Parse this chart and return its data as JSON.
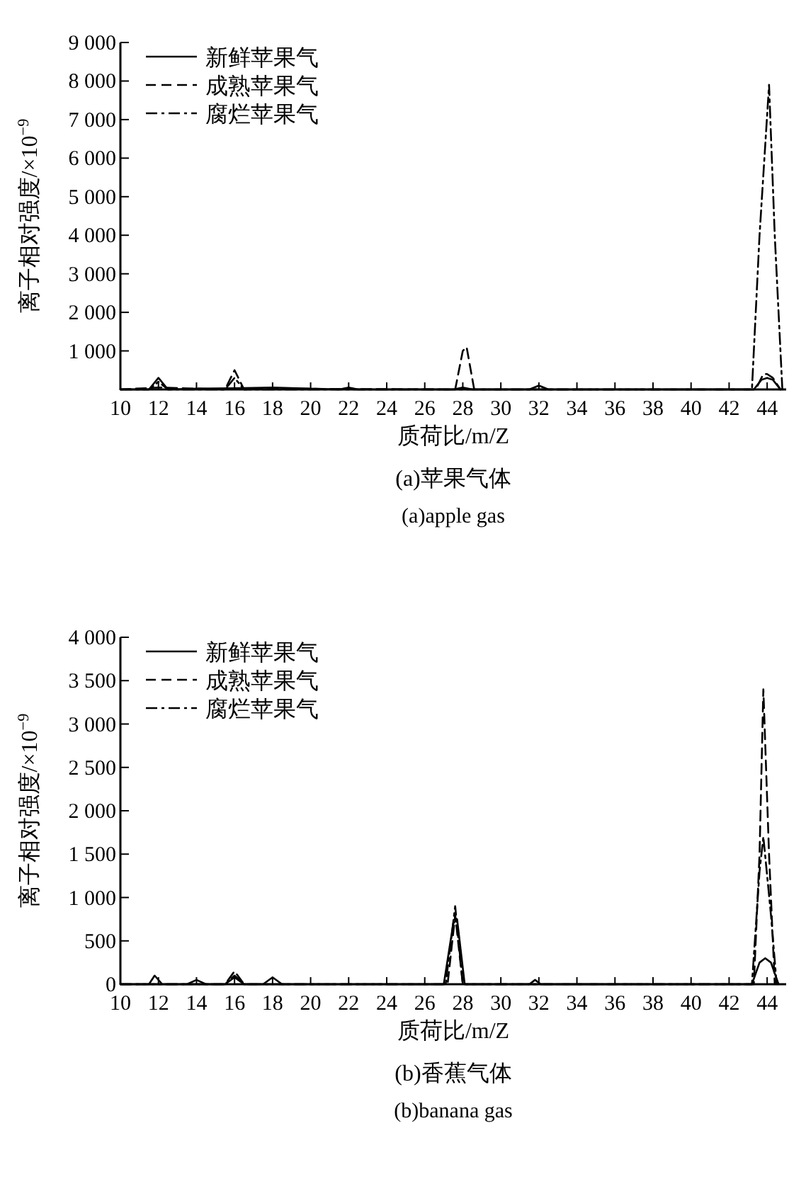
{
  "chart_data": [
    {
      "type": "line",
      "title": "(a)苹果气体",
      "subtitle": "(a)apple gas",
      "xlabel": "质荷比/m/Z",
      "ylabel": "离子相对强度/×10$^{−9}$",
      "xlim": [
        10,
        45
      ],
      "xticks": [
        10,
        12,
        14,
        16,
        18,
        20,
        22,
        24,
        26,
        28,
        30,
        32,
        34,
        36,
        38,
        40,
        42,
        44
      ],
      "ylim": [
        0,
        9000
      ],
      "yticks": [
        {
          "value": 1000,
          "label": "1 000"
        },
        {
          "value": 2000,
          "label": "2 000"
        },
        {
          "value": 3000,
          "label": "3 000"
        },
        {
          "value": 4000,
          "label": "4 000"
        },
        {
          "value": 5000,
          "label": "5 000"
        },
        {
          "value": 6000,
          "label": "6 000"
        },
        {
          "value": 7000,
          "label": "7 000"
        },
        {
          "value": 8000,
          "label": "8 000"
        },
        {
          "value": 9000,
          "label": "9 000"
        }
      ],
      "grid": false,
      "legend": "top left",
      "marker": "none",
      "series": [
        {
          "name": "新鲜苹果气",
          "color": "#000000",
          "line_style": "solid",
          "x": [
            10,
            11.5,
            12,
            12.5,
            14,
            16,
            18,
            21.5,
            22,
            22.5,
            27.5,
            28,
            28.5,
            31.5,
            32,
            32.5,
            43.3,
            43.7,
            44,
            44.3,
            44.7
          ],
          "values": [
            0,
            0,
            300,
            0,
            20,
            30,
            50,
            0,
            50,
            0,
            0,
            50,
            0,
            0,
            100,
            0,
            0,
            250,
            300,
            250,
            0
          ]
        },
        {
          "name": "成熟苹果气",
          "color": "#000000",
          "line_style": "dashed",
          "x": [
            10,
            12,
            15.5,
            16,
            16.5,
            18,
            27.6,
            28,
            28.2,
            28.6,
            43.4,
            43.8,
            44,
            44.3,
            44.7
          ],
          "values": [
            0,
            50,
            0,
            500,
            0,
            20,
            0,
            1000,
            1100,
            0,
            0,
            400,
            400,
            300,
            0
          ]
        },
        {
          "name": "腐烂苹果气",
          "color": "#000000",
          "line_style": "dashdot",
          "x": [
            10,
            11.5,
            12,
            12.5,
            15.5,
            16,
            16.5,
            43.2,
            43.6,
            44.1,
            44.4,
            44.8
          ],
          "values": [
            0,
            0,
            200,
            0,
            0,
            300,
            0,
            0,
            4000,
            7900,
            4000,
            0
          ]
        }
      ]
    },
    {
      "type": "line",
      "title": "(b)香蕉气体",
      "subtitle": "(b)banana gas",
      "xlabel": "质荷比/m/Z",
      "ylabel": "离子相对强度/×10$^{−9}$",
      "xlim": [
        10,
        45
      ],
      "xticks": [
        10,
        12,
        14,
        16,
        18,
        20,
        22,
        24,
        26,
        28,
        30,
        32,
        34,
        36,
        38,
        40,
        42,
        44
      ],
      "ylim": [
        0,
        4000
      ],
      "yticks": [
        0,
        500,
        {
          "value": 1000,
          "label": "1 000"
        },
        {
          "value": 1500,
          "label": "1 500"
        },
        {
          "value": 2000,
          "label": "2 000"
        },
        {
          "value": 2500,
          "label": "2 500"
        },
        {
          "value": 3000,
          "label": "3 000"
        },
        {
          "value": 3500,
          "label": "3 500"
        },
        {
          "value": 4000,
          "label": "4 000"
        }
      ],
      "grid": false,
      "legend": "top left",
      "marker": "none",
      "series": [
        {
          "name": "新鲜苹果气",
          "color": "#000000",
          "line_style": "solid",
          "x": [
            10,
            11.5,
            11.8,
            12.2,
            13.5,
            14,
            14.5,
            15.5,
            16,
            16.5,
            17.5,
            18,
            18.5,
            27,
            27.5,
            27.7,
            28.1,
            31.5,
            31.8,
            32.1,
            43.2,
            43.6,
            43.9,
            44.2,
            44.6
          ],
          "values": [
            0,
            0,
            100,
            0,
            0,
            50,
            0,
            0,
            80,
            0,
            0,
            80,
            0,
            0,
            700,
            750,
            0,
            0,
            50,
            0,
            0,
            250,
            300,
            250,
            0
          ]
        },
        {
          "name": "成熟苹果气",
          "color": "#000000",
          "line_style": "dashed",
          "x": [
            10,
            15.5,
            16,
            16.5,
            27.2,
            27.6,
            28,
            43.3,
            43.6,
            43.8,
            44.1,
            44.4
          ],
          "values": [
            0,
            0,
            150,
            0,
            0,
            800,
            0,
            0,
            1500,
            3400,
            1500,
            0
          ]
        },
        {
          "name": "腐烂苹果气",
          "color": "#000000",
          "line_style": "dashdot",
          "x": [
            10,
            15.5,
            16,
            16.5,
            27.1,
            27.6,
            28,
            43.2,
            43.6,
            43.8,
            44.2,
            44.5
          ],
          "values": [
            0,
            0,
            100,
            0,
            0,
            900,
            0,
            0,
            1300,
            1700,
            800,
            0
          ]
        }
      ]
    }
  ]
}
